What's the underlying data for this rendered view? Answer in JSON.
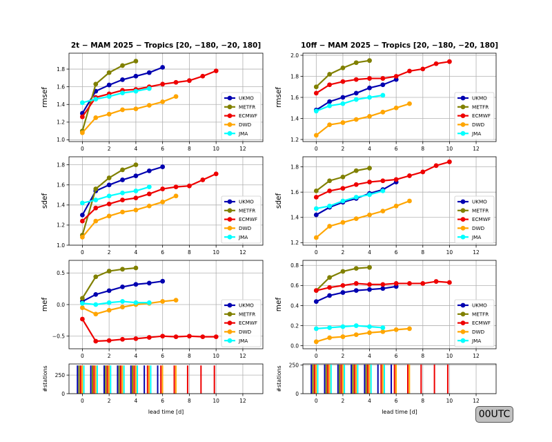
{
  "colors": {
    "UKMO": "#0000b0",
    "METFR": "#808000",
    "ECMWF": "#ee0000",
    "DWD": "#ffa500",
    "JMA": "#00ffff"
  },
  "utc_label": "00UTC",
  "chart_data": [
    {
      "type": "line",
      "column": 0,
      "row": 0,
      "title": "2t − MAM 2025 − Tropics [20, −180, −20, 180]",
      "ylabel": "rmsef",
      "xlabel": "",
      "xlim": [
        -1,
        13.5
      ],
      "ylim": [
        0.98,
        1.98
      ],
      "xticks": [
        0,
        2,
        4,
        6,
        8,
        10,
        12
      ],
      "yticks": [
        1.0,
        1.2,
        1.4,
        1.6,
        1.8
      ],
      "grid": true,
      "legend": "lower-right",
      "series": [
        {
          "name": "UKMO",
          "x": [
            0,
            1,
            2,
            3,
            4,
            5,
            6
          ],
          "y": [
            1.3,
            1.55,
            1.62,
            1.68,
            1.72,
            1.76,
            1.82
          ]
        },
        {
          "name": "METFR",
          "x": [
            0,
            1,
            2,
            3,
            4
          ],
          "y": [
            1.1,
            1.63,
            1.76,
            1.84,
            1.89
          ]
        },
        {
          "name": "ECMWF",
          "x": [
            0,
            1,
            2,
            3,
            4,
            5,
            6,
            7,
            8,
            9,
            10
          ],
          "y": [
            1.26,
            1.48,
            1.52,
            1.56,
            1.57,
            1.6,
            1.63,
            1.65,
            1.67,
            1.72,
            1.78
          ]
        },
        {
          "name": "DWD",
          "x": [
            0,
            1,
            2,
            3,
            4,
            5,
            6,
            7
          ],
          "y": [
            1.08,
            1.25,
            1.29,
            1.34,
            1.35,
            1.39,
            1.43,
            1.49
          ]
        },
        {
          "name": "JMA",
          "x": [
            0,
            1,
            2,
            3,
            4,
            5
          ],
          "y": [
            1.42,
            1.46,
            1.49,
            1.53,
            1.55,
            1.58
          ]
        }
      ]
    },
    {
      "type": "line",
      "column": 1,
      "row": 0,
      "title": "10ff − MAM 2025 − Tropics [20, −180, −20, 180]",
      "ylabel": "rmsef",
      "xlabel": "",
      "xlim": [
        -1,
        13.5
      ],
      "ylim": [
        1.18,
        2.02
      ],
      "xticks": [
        0,
        2,
        4,
        6,
        8,
        10,
        12
      ],
      "yticks": [
        1.2,
        1.4,
        1.6,
        1.8,
        2.0
      ],
      "grid": true,
      "legend": "lower-right",
      "series": [
        {
          "name": "UKMO",
          "x": [
            0,
            1,
            2,
            3,
            4,
            5,
            6
          ],
          "y": [
            1.48,
            1.56,
            1.6,
            1.64,
            1.69,
            1.72,
            1.77
          ]
        },
        {
          "name": "METFR",
          "x": [
            0,
            1,
            2,
            3,
            4
          ],
          "y": [
            1.7,
            1.82,
            1.88,
            1.93,
            1.95
          ]
        },
        {
          "name": "ECMWF",
          "x": [
            0,
            1,
            2,
            3,
            4,
            5,
            6,
            7,
            8,
            9,
            10
          ],
          "y": [
            1.64,
            1.72,
            1.75,
            1.77,
            1.78,
            1.78,
            1.8,
            1.85,
            1.87,
            1.92,
            1.94
          ]
        },
        {
          "name": "DWD",
          "x": [
            0,
            1,
            2,
            3,
            4,
            5,
            6,
            7
          ],
          "y": [
            1.24,
            1.34,
            1.36,
            1.39,
            1.42,
            1.46,
            1.5,
            1.54
          ]
        },
        {
          "name": "JMA",
          "x": [
            0,
            1,
            2,
            3,
            4,
            5
          ],
          "y": [
            1.47,
            1.52,
            1.54,
            1.58,
            1.6,
            1.62
          ]
        }
      ]
    },
    {
      "type": "line",
      "column": 0,
      "row": 1,
      "title": "",
      "ylabel": "sdef",
      "xlabel": "",
      "xlim": [
        -1,
        13.5
      ],
      "ylim": [
        1.0,
        1.88
      ],
      "xticks": [
        0,
        2,
        4,
        6,
        8,
        10,
        12
      ],
      "yticks": [
        1.0,
        1.2,
        1.4,
        1.6,
        1.8
      ],
      "grid": true,
      "legend": "lower-right",
      "series": [
        {
          "name": "UKMO",
          "x": [
            0,
            1,
            2,
            3,
            4,
            5,
            6
          ],
          "y": [
            1.3,
            1.54,
            1.6,
            1.65,
            1.69,
            1.74,
            1.78
          ]
        },
        {
          "name": "METFR",
          "x": [
            0,
            1,
            2,
            3,
            4
          ],
          "y": [
            1.1,
            1.56,
            1.67,
            1.75,
            1.8
          ]
        },
        {
          "name": "ECMWF",
          "x": [
            0,
            1,
            2,
            3,
            4,
            5,
            6,
            7,
            8,
            9,
            10
          ],
          "y": [
            1.24,
            1.37,
            1.41,
            1.45,
            1.47,
            1.51,
            1.56,
            1.58,
            1.59,
            1.65,
            1.71
          ]
        },
        {
          "name": "DWD",
          "x": [
            0,
            1,
            2,
            3,
            4,
            5,
            6,
            7
          ],
          "y": [
            1.08,
            1.24,
            1.29,
            1.33,
            1.35,
            1.39,
            1.43,
            1.49
          ]
        },
        {
          "name": "JMA",
          "x": [
            0,
            1,
            2,
            3,
            4,
            5
          ],
          "y": [
            1.42,
            1.45,
            1.49,
            1.52,
            1.54,
            1.58
          ]
        }
      ]
    },
    {
      "type": "line",
      "column": 1,
      "row": 1,
      "title": "",
      "ylabel": "sdef",
      "xlabel": "",
      "xlim": [
        -1,
        13.5
      ],
      "ylim": [
        1.18,
        1.88
      ],
      "xticks": [
        0,
        2,
        4,
        6,
        8,
        10,
        12
      ],
      "yticks": [
        1.2,
        1.4,
        1.6,
        1.8
      ],
      "grid": true,
      "legend": "lower-right",
      "series": [
        {
          "name": "UKMO",
          "x": [
            0,
            1,
            2,
            3,
            4,
            5,
            6
          ],
          "y": [
            1.42,
            1.48,
            1.52,
            1.55,
            1.59,
            1.62,
            1.68
          ]
        },
        {
          "name": "METFR",
          "x": [
            0,
            1,
            2,
            3,
            4
          ],
          "y": [
            1.61,
            1.69,
            1.72,
            1.77,
            1.79
          ]
        },
        {
          "name": "ECMWF",
          "x": [
            0,
            1,
            2,
            3,
            4,
            5,
            6,
            7,
            8,
            9,
            10
          ],
          "y": [
            1.56,
            1.61,
            1.63,
            1.66,
            1.68,
            1.69,
            1.7,
            1.73,
            1.76,
            1.81,
            1.84
          ]
        },
        {
          "name": "DWD",
          "x": [
            0,
            1,
            2,
            3,
            4,
            5,
            6,
            7
          ],
          "y": [
            1.24,
            1.33,
            1.36,
            1.39,
            1.42,
            1.45,
            1.49,
            1.53
          ]
        },
        {
          "name": "JMA",
          "x": [
            0,
            1,
            2,
            3,
            4,
            5
          ],
          "y": [
            1.47,
            1.49,
            1.53,
            1.56,
            1.58,
            1.61
          ]
        }
      ]
    },
    {
      "type": "line",
      "column": 0,
      "row": 2,
      "title": "",
      "ylabel": "mef",
      "xlabel": "",
      "xlim": [
        -1,
        13.5
      ],
      "ylim": [
        -0.7,
        0.7
      ],
      "xticks": [
        0,
        2,
        4,
        6,
        8,
        10,
        12
      ],
      "yticks": [
        -0.5,
        0.0,
        0.5
      ],
      "grid": true,
      "legend": "lower-right",
      "series": [
        {
          "name": "UKMO",
          "x": [
            0,
            1,
            2,
            3,
            4,
            5,
            6
          ],
          "y": [
            0.05,
            0.16,
            0.22,
            0.28,
            0.32,
            0.34,
            0.37
          ]
        },
        {
          "name": "METFR",
          "x": [
            0,
            1,
            2,
            3,
            4
          ],
          "y": [
            0.1,
            0.44,
            0.53,
            0.56,
            0.58
          ]
        },
        {
          "name": "ECMWF",
          "x": [
            0,
            1,
            2,
            3,
            4,
            5,
            6,
            7,
            8,
            9,
            10
          ],
          "y": [
            -0.23,
            -0.58,
            -0.57,
            -0.55,
            -0.54,
            -0.52,
            -0.5,
            -0.51,
            -0.5,
            -0.51,
            -0.51
          ]
        },
        {
          "name": "DWD",
          "x": [
            0,
            1,
            2,
            3,
            4,
            5,
            6,
            7
          ],
          "y": [
            -0.05,
            -0.15,
            -0.09,
            -0.04,
            0.0,
            0.02,
            0.05,
            0.07
          ]
        },
        {
          "name": "JMA",
          "x": [
            0,
            1,
            2,
            3,
            4,
            5
          ],
          "y": [
            0.02,
            0.0,
            0.03,
            0.05,
            0.03,
            0.03
          ]
        }
      ]
    },
    {
      "type": "line",
      "column": 1,
      "row": 2,
      "title": "",
      "ylabel": "mef",
      "xlabel": "",
      "xlim": [
        -1,
        13.5
      ],
      "ylim": [
        -0.03,
        0.85
      ],
      "xticks": [
        0,
        2,
        4,
        6,
        8,
        10,
        12
      ],
      "yticks": [
        0.0,
        0.2,
        0.4,
        0.6,
        0.8
      ],
      "grid": true,
      "legend": "lower-right",
      "series": [
        {
          "name": "UKMO",
          "x": [
            0,
            1,
            2,
            3,
            4,
            5,
            6
          ],
          "y": [
            0.44,
            0.5,
            0.53,
            0.55,
            0.56,
            0.57,
            0.59
          ]
        },
        {
          "name": "METFR",
          "x": [
            0,
            1,
            2,
            3,
            4
          ],
          "y": [
            0.55,
            0.68,
            0.74,
            0.77,
            0.78
          ]
        },
        {
          "name": "ECMWF",
          "x": [
            0,
            1,
            2,
            3,
            4,
            5,
            6,
            7,
            8,
            9,
            10
          ],
          "y": [
            0.55,
            0.58,
            0.6,
            0.62,
            0.61,
            0.61,
            0.62,
            0.62,
            0.62,
            0.64,
            0.63
          ]
        },
        {
          "name": "DWD",
          "x": [
            0,
            1,
            2,
            3,
            4,
            5,
            6,
            7
          ],
          "y": [
            0.04,
            0.08,
            0.09,
            0.11,
            0.13,
            0.14,
            0.16,
            0.17
          ]
        },
        {
          "name": "JMA",
          "x": [
            0,
            1,
            2,
            3,
            4,
            5
          ],
          "y": [
            0.17,
            0.18,
            0.19,
            0.2,
            0.19,
            0.18
          ]
        }
      ]
    },
    {
      "type": "bar",
      "column": 0,
      "row": 3,
      "title": "",
      "ylabel": "#stations",
      "xlabel": "lead time [d]",
      "xlim": [
        -1,
        13.5
      ],
      "ylim": [
        0,
        400
      ],
      "xticks": [
        0,
        2,
        4,
        6,
        8,
        10,
        12
      ],
      "yticks": [
        0,
        250
      ],
      "grid": true,
      "series": [
        {
          "name": "UKMO",
          "x": [
            0,
            1,
            2,
            3,
            4,
            5,
            6
          ],
          "y": [
            380,
            380,
            380,
            380,
            380,
            380,
            380
          ]
        },
        {
          "name": "METFR",
          "x": [
            0,
            1,
            2,
            3,
            4
          ],
          "y": [
            380,
            380,
            380,
            380,
            380
          ]
        },
        {
          "name": "ECMWF",
          "x": [
            0,
            1,
            2,
            3,
            4,
            5,
            6,
            7,
            8,
            9,
            10
          ],
          "y": [
            380,
            380,
            380,
            380,
            380,
            380,
            380,
            380,
            380,
            380,
            380
          ]
        },
        {
          "name": "DWD",
          "x": [
            0,
            1,
            2,
            3,
            4,
            5,
            6,
            7
          ],
          "y": [
            380,
            380,
            380,
            380,
            380,
            380,
            380,
            380
          ]
        },
        {
          "name": "JMA",
          "x": [
            0,
            1,
            2,
            3,
            4,
            5
          ],
          "y": [
            380,
            380,
            380,
            380,
            380,
            380
          ]
        }
      ]
    },
    {
      "type": "bar",
      "column": 1,
      "row": 3,
      "title": "",
      "ylabel": "#stations",
      "xlabel": "lead time [d]",
      "xlim": [
        -1,
        13.5
      ],
      "ylim": [
        0,
        260
      ],
      "xticks": [
        0,
        2,
        4,
        6,
        8,
        10,
        12
      ],
      "yticks": [
        0,
        250
      ],
      "grid": true,
      "series": [
        {
          "name": "UKMO",
          "x": [
            0,
            1,
            2,
            3,
            4,
            5,
            6
          ],
          "y": [
            255,
            255,
            255,
            255,
            255,
            255,
            255
          ]
        },
        {
          "name": "METFR",
          "x": [
            0,
            1,
            2,
            3,
            4
          ],
          "y": [
            255,
            255,
            255,
            255,
            255
          ]
        },
        {
          "name": "ECMWF",
          "x": [
            0,
            1,
            2,
            3,
            4,
            5,
            6,
            7,
            8,
            9,
            10
          ],
          "y": [
            255,
            255,
            255,
            255,
            255,
            255,
            255,
            255,
            255,
            255,
            255
          ]
        },
        {
          "name": "DWD",
          "x": [
            0,
            1,
            2,
            3,
            4,
            5,
            6,
            7
          ],
          "y": [
            255,
            255,
            255,
            255,
            255,
            255,
            255,
            255
          ]
        },
        {
          "name": "JMA",
          "x": [
            0,
            1,
            2,
            3,
            4,
            5
          ],
          "y": [
            255,
            255,
            255,
            255,
            255,
            255
          ]
        }
      ]
    }
  ]
}
